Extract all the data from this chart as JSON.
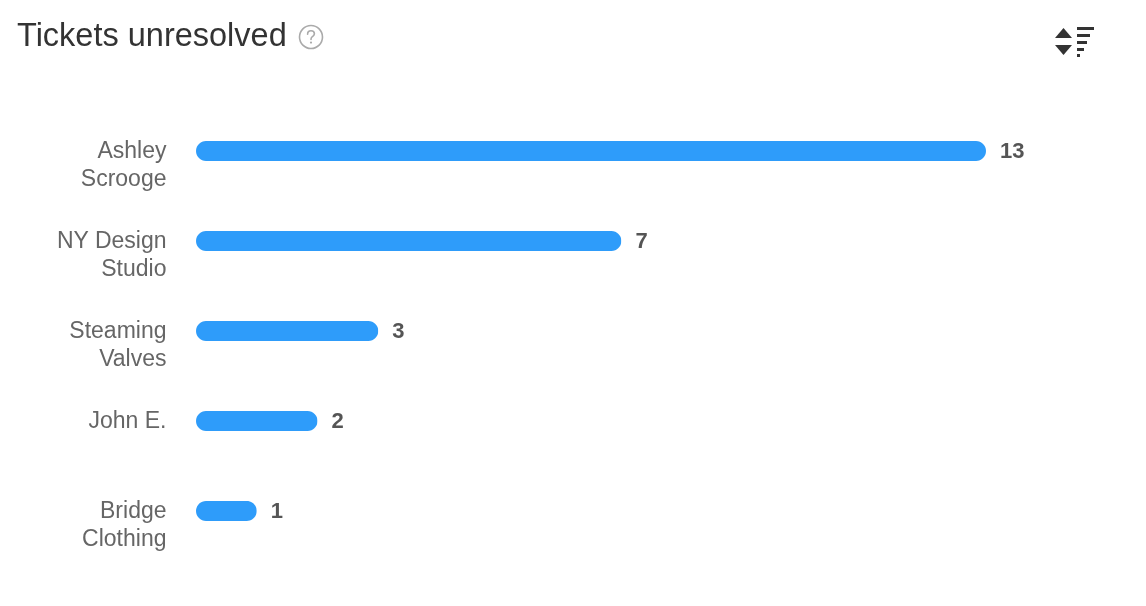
{
  "chart_data": {
    "type": "bar",
    "title": "Tickets unresolved",
    "orientation": "horizontal",
    "categories": [
      "Ashley Scrooge",
      "NY Design Studio",
      "Steaming Valves",
      "John E.",
      "Bridge Clothing"
    ],
    "values": [
      13,
      7,
      3,
      2,
      1
    ],
    "color": "#2e9cfa",
    "data_labels": true,
    "tick_labels": "y"
  }
}
